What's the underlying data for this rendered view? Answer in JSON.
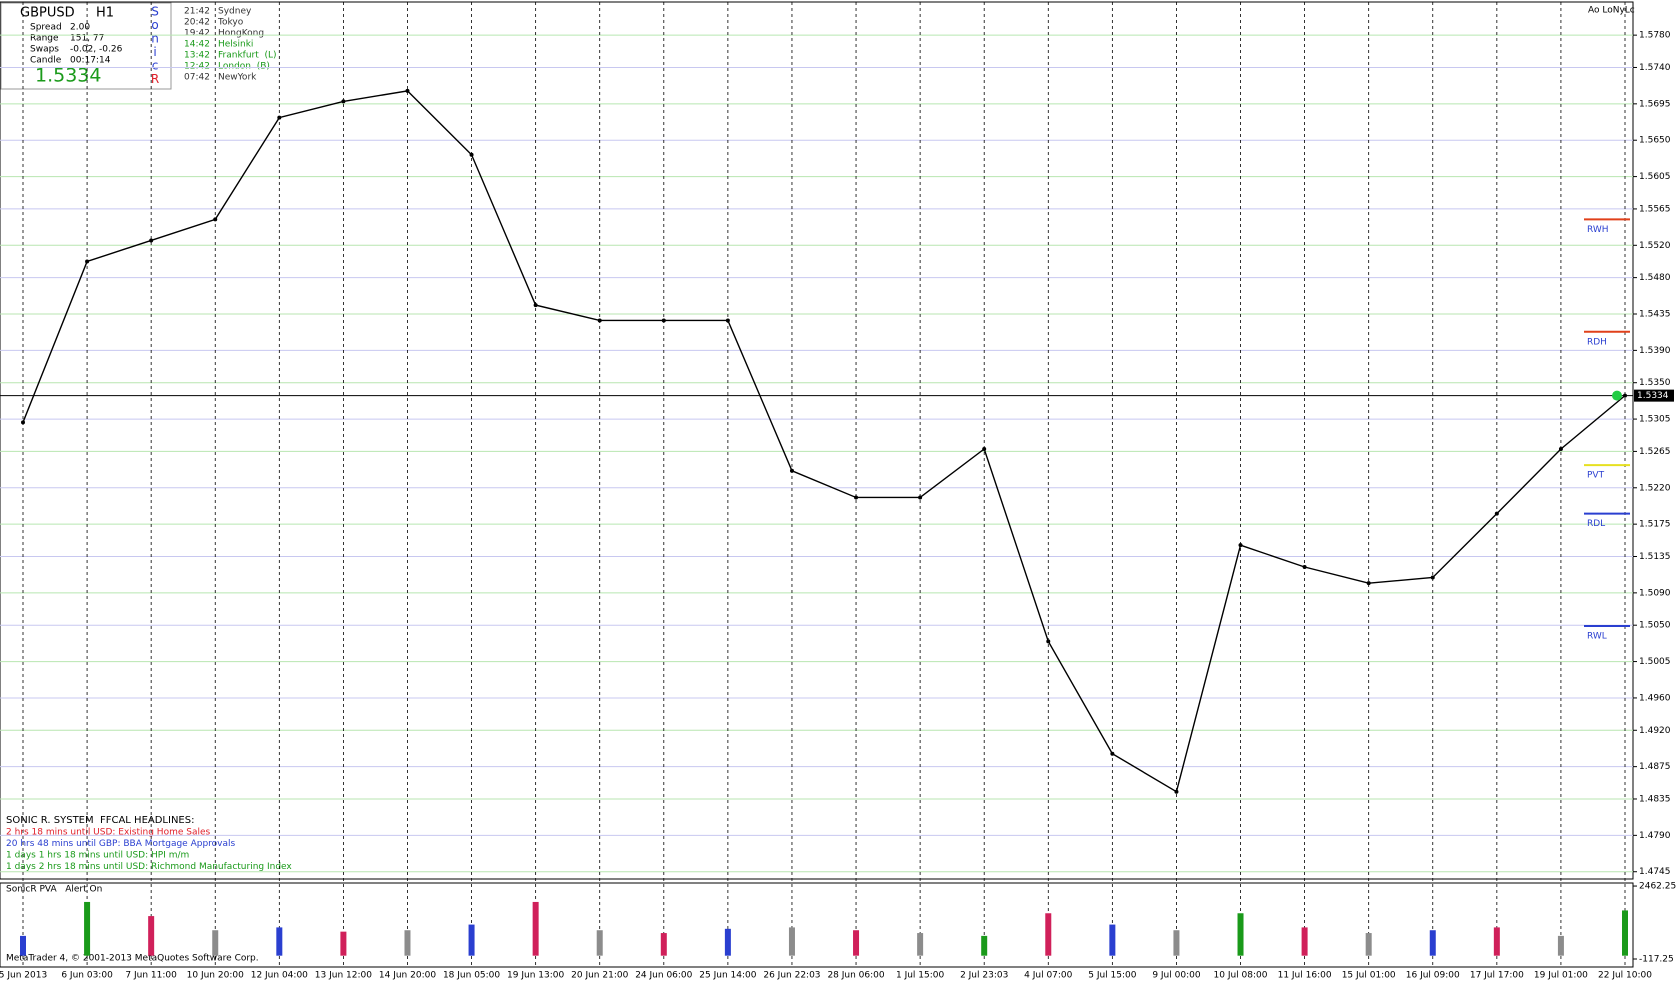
{
  "info_panel": {
    "symbol": "GBPUSD",
    "timeframe": "H1",
    "rows": [
      [
        "Spread",
        "2.00"
      ],
      [
        "Range",
        "151, 77"
      ],
      [
        "Swaps",
        "-0.02, -0.26"
      ],
      [
        "Candle",
        "00:17:14"
      ]
    ],
    "logo": [
      {
        "text": "S",
        "color": "#2a3fd0"
      },
      {
        "text": "o",
        "color": "#2a3fd0"
      },
      {
        "text": "n",
        "color": "#2a3fd0"
      },
      {
        "text": "i",
        "color": "#2a3fd0"
      },
      {
        "text": "c",
        "color": "#2a3fd0"
      },
      {
        "text": "R",
        "color": "#e0202a"
      }
    ],
    "sessions": [
      {
        "time": "21:42",
        "place": "Sydney",
        "color": "#333333"
      },
      {
        "time": "20:42",
        "place": "Tokyo",
        "color": "#333333"
      },
      {
        "time": "19:42",
        "place": "HongKong",
        "color": "#333333"
      },
      {
        "time": "14:42",
        "place": "Helsinki",
        "color": "#1a9a1a"
      },
      {
        "time": "13:42",
        "place": "Frankfurt  (L)",
        "color": "#1a9a1a"
      },
      {
        "time": "12:42",
        "place": "London  (B)",
        "color": "#1a9a1a"
      },
      {
        "time": "07:42",
        "place": "NewYork",
        "color": "#333333"
      }
    ]
  },
  "corner_label": "Ao LoNyLc",
  "headlines": {
    "title": "SONIC R. SYSTEM  FFCAL HEADLINES:",
    "items": [
      {
        "text": "2 hrs 18 mins until USD: Existing Home Sales",
        "color": "#e0202a"
      },
      {
        "text": "20 hrs 48 mins until GBP: BBA Mortgage Approvals",
        "color": "#2a3fd0"
      },
      {
        "text": "1 days 1 hrs 18 mins until USD: HPI m/m",
        "color": "#1a9a1a"
      },
      {
        "text": "1 days 2 hrs 18 mins until USD: Richmond Manufacturing Index",
        "color": "#1a9a1a"
      }
    ]
  },
  "copyright": "MetaTrader 4, © 2001-2013 MetaQuotes Software Corp.",
  "chart_data": [
    {
      "type": "line",
      "categories": [
        "5 Jun 2013",
        "6 Jun 03:00",
        "7 Jun 11:00",
        "10 Jun 20:00",
        "12 Jun 04:00",
        "13 Jun 12:00",
        "14 Jun 20:00",
        "18 Jun 05:00",
        "19 Jun 13:00",
        "20 Jun 21:00",
        "24 Jun 06:00",
        "25 Jun 14:00",
        "26 Jun 22:03",
        "28 Jun 06:00",
        "1 Jul 15:00",
        "2 Jul 23:03",
        "4 Jul 07:00",
        "5 Jul 15:00",
        "9 Jul 00:00",
        "10 Jul 08:00",
        "11 Jul 16:00",
        "15 Jul 01:00",
        "16 Jul 09:00",
        "17 Jul 17:00",
        "19 Jul 01:00",
        "22 Jul 10:00"
      ],
      "values": [
        1.5301,
        1.55,
        1.5526,
        1.5552,
        1.5678,
        1.5698,
        1.5711,
        1.5632,
        1.5446,
        1.5427,
        1.5427,
        1.5427,
        1.5241,
        1.5208,
        1.5208,
        1.5268,
        1.503,
        1.4891,
        1.4844,
        1.5149,
        1.5122,
        1.5102,
        1.5109,
        1.5188,
        1.5268,
        1.5334
      ],
      "color": "#000000",
      "ylim": [
        1.4736,
        1.5821
      ],
      "yticks": [
        {
          "value": 1.578,
          "label": "1.5780"
        },
        {
          "value": 1.574,
          "label": "1.5740"
        },
        1.5695,
        {
          "value": 1.565,
          "label": "1.5650"
        },
        1.5605,
        1.5565,
        {
          "value": 1.552,
          "label": "1.5520"
        },
        {
          "value": 1.548,
          "label": "1.5480"
        },
        1.5435,
        {
          "value": 1.539,
          "label": "1.5390"
        },
        {
          "value": 1.535,
          "label": "1.5350"
        },
        1.5305,
        1.5265,
        {
          "value": 1.522,
          "label": "1.5220"
        },
        1.5175,
        1.5135,
        {
          "value": 1.509,
          "label": "1.5090"
        },
        {
          "value": 1.505,
          "label": "1.5050"
        },
        1.5005,
        {
          "value": 1.496,
          "label": "1.4960"
        },
        {
          "value": 1.492,
          "label": "1.4920"
        },
        1.4875,
        1.4835,
        {
          "value": 1.479,
          "label": "1.4790"
        },
        1.4745
      ],
      "grid": true,
      "last_price": 1.5334,
      "levels": [
        {
          "name": "RWH",
          "value": 1.5552,
          "color": "#e0401a"
        },
        {
          "name": "RDH",
          "value": 1.5413,
          "color": "#e0401a"
        },
        {
          "name": "PVT",
          "value": 1.5248,
          "color": "#e6e020"
        },
        {
          "name": "RDL",
          "value": 1.5188,
          "color": "#2a3fd0"
        },
        {
          "name": "RWL",
          "value": 1.5049,
          "color": "#2a3fd0"
        }
      ]
    },
    {
      "type": "bar",
      "title": "SonicR PVA   Alert On",
      "values": [
        700,
        1900,
        1400,
        900,
        1000,
        850,
        900,
        1100,
        1900,
        900,
        800,
        950,
        1000,
        900,
        800,
        700,
        1500,
        1100,
        900,
        1500,
        1000,
        800,
        900,
        1000,
        700,
        1600
      ],
      "colors": [
        "#2a3fd0",
        "#1a9a1a",
        "#d0205a",
        "#8c8c8c",
        "#2a3fd0",
        "#d0205a",
        "#8c8c8c",
        "#2a3fd0",
        "#d0205a",
        "#8c8c8c",
        "#d0205a",
        "#2a3fd0",
        "#8c8c8c",
        "#d0205a",
        "#8c8c8c",
        "#1a9a1a",
        "#d0205a",
        "#2a3fd0",
        "#8c8c8c",
        "#1a9a1a",
        "#d0205a",
        "#8c8c8c",
        "#2a3fd0",
        "#d0205a",
        "#8c8c8c",
        "#1a9a1a"
      ],
      "ylim": [
        -400,
        2570
      ],
      "yticks": [
        2462.25,
        -117.25
      ]
    }
  ]
}
